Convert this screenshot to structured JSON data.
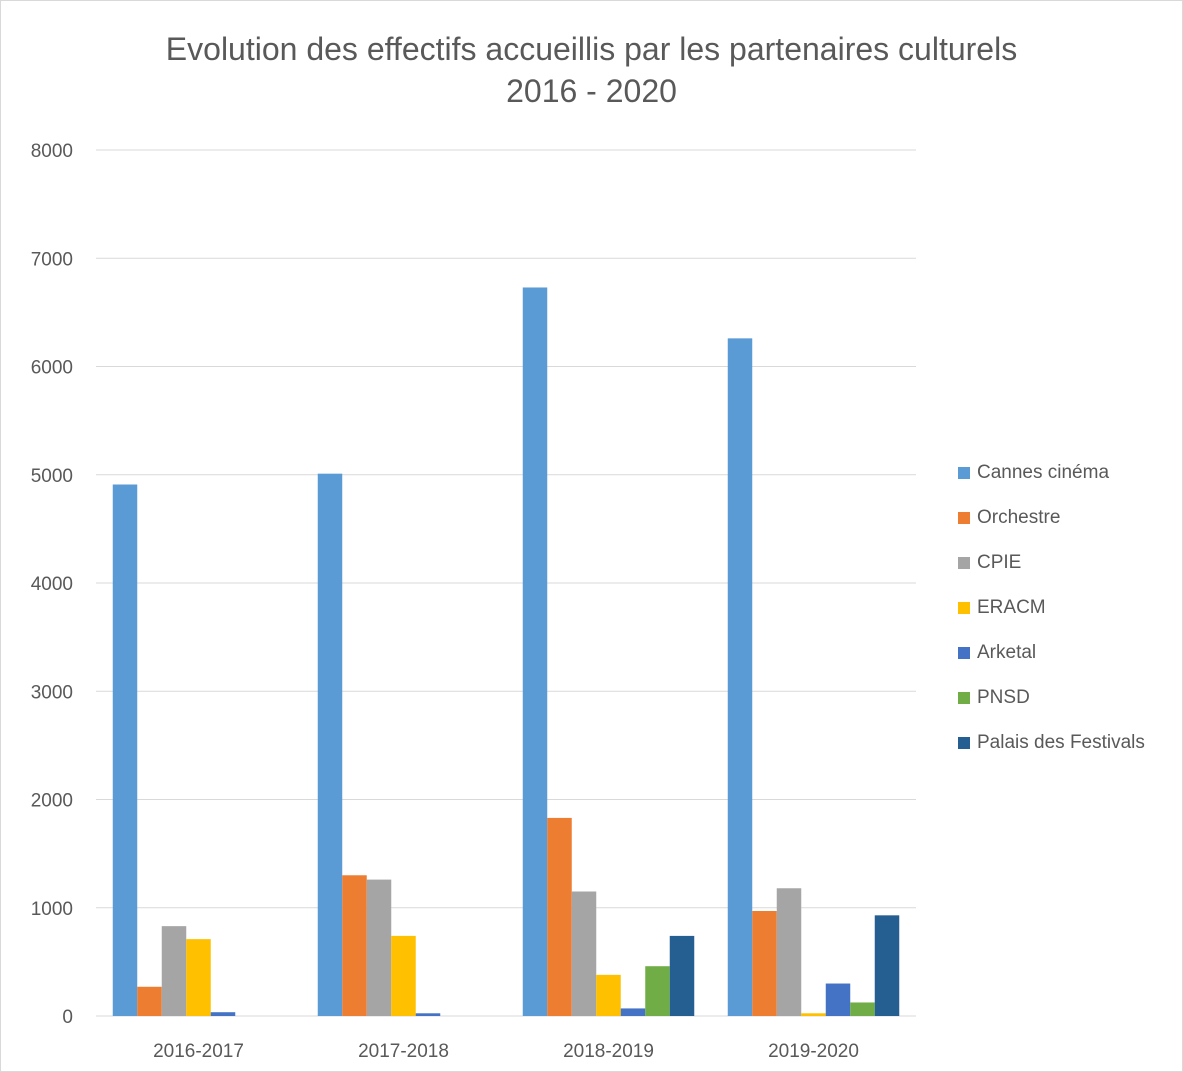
{
  "chart_data": {
    "type": "bar",
    "title": [
      "Evolution des effectifs accueillis par les partenaires culturels",
      "2016 - 2020"
    ],
    "xlabel": "",
    "ylabel": "",
    "categories": [
      "2016-2017",
      "2017-2018",
      "2018-2019",
      "2019-2020"
    ],
    "ylim": [
      0,
      8000
    ],
    "yticks": [
      "0",
      "1000",
      "2000",
      "3000",
      "4000",
      "5000",
      "6000",
      "7000",
      "8000"
    ],
    "grid": true,
    "legend_position": "right",
    "series": [
      {
        "name": "Cannes cinéma",
        "color": "#5b9bd5",
        "values": [
          4910,
          5010,
          6730,
          6260
        ]
      },
      {
        "name": "Orchestre",
        "color": "#ed7d31",
        "values": [
          270,
          1300,
          1830,
          970
        ]
      },
      {
        "name": "CPIE",
        "color": "#a5a5a5",
        "values": [
          830,
          1260,
          1150,
          1180
        ]
      },
      {
        "name": "ERACM",
        "color": "#ffc000",
        "values": [
          710,
          740,
          380,
          25
        ]
      },
      {
        "name": "Arketal",
        "color": "#4472c4",
        "values": [
          35,
          25,
          70,
          300
        ]
      },
      {
        "name": "PNSD",
        "color": "#70ad47",
        "values": [
          0,
          0,
          460,
          125
        ]
      },
      {
        "name": "Palais des Festivals",
        "color": "#255e91",
        "values": [
          0,
          0,
          740,
          930
        ]
      }
    ]
  }
}
